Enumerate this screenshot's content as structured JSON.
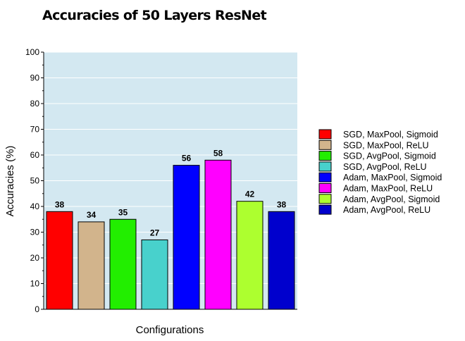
{
  "chart_data": {
    "type": "bar",
    "title": "Accuracies of 50 Layers ResNet",
    "xlabel": "Configurations",
    "ylabel": "Accuracies (%)",
    "ylim": [
      0,
      100
    ],
    "yticks": [
      0,
      10,
      20,
      30,
      40,
      50,
      60,
      70,
      80,
      90,
      100
    ],
    "grid": true,
    "legend_position": "right",
    "plot_background": "#d3e8f1",
    "bars": [
      {
        "name": "SGD, MaxPool, Sigmoid",
        "value": 38,
        "color": "#ff0000"
      },
      {
        "name": "SGD, MaxPool, ReLU",
        "value": 34,
        "color": "#d2b48c"
      },
      {
        "name": "SGD, AvgPool, Sigmoid",
        "value": 35,
        "color": "#22ee00"
      },
      {
        "name": "SGD, AvgPool, ReLU",
        "value": 27,
        "color": "#48d1cc"
      },
      {
        "name": "Adam, MaxPool, Sigmoid",
        "value": 56,
        "color": "#0000ff"
      },
      {
        "name": "Adam, MaxPool, ReLU",
        "value": 58,
        "color": "#ff00ff"
      },
      {
        "name": "Adam, AvgPool, Sigmoid",
        "value": 42,
        "color": "#adff2f"
      },
      {
        "name": "Adam, AvgPool, ReLU",
        "value": 38,
        "color": "#0000cd"
      }
    ]
  }
}
